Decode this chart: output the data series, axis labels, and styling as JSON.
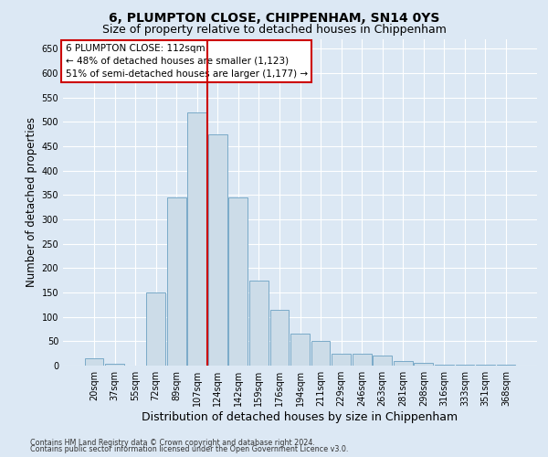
{
  "title1": "6, PLUMPTON CLOSE, CHIPPENHAM, SN14 0YS",
  "title2": "Size of property relative to detached houses in Chippenham",
  "xlabel": "Distribution of detached houses by size in Chippenham",
  "ylabel": "Number of detached properties",
  "annotation_line1": "6 PLUMPTON CLOSE: 112sqm",
  "annotation_line2": "← 48% of detached houses are smaller (1,123)",
  "annotation_line3": "51% of semi-detached houses are larger (1,177) →",
  "footer1": "Contains HM Land Registry data © Crown copyright and database right 2024.",
  "footer2": "Contains public sector information licensed under the Open Government Licence v3.0.",
  "categories": [
    "20sqm",
    "37sqm",
    "55sqm",
    "72sqm",
    "89sqm",
    "107sqm",
    "124sqm",
    "142sqm",
    "159sqm",
    "176sqm",
    "194sqm",
    "211sqm",
    "229sqm",
    "246sqm",
    "263sqm",
    "281sqm",
    "298sqm",
    "316sqm",
    "333sqm",
    "351sqm",
    "368sqm"
  ],
  "values": [
    15,
    3,
    0,
    150,
    345,
    520,
    475,
    345,
    175,
    115,
    65,
    50,
    25,
    25,
    20,
    10,
    5,
    2,
    2,
    2,
    2
  ],
  "bar_color": "#ccdce8",
  "bar_edgecolor": "#7aaac8",
  "vline_color": "#cc0000",
  "vline_position": 5.5,
  "ylim": [
    0,
    670
  ],
  "yticks": [
    0,
    50,
    100,
    150,
    200,
    250,
    300,
    350,
    400,
    450,
    500,
    550,
    600,
    650
  ],
  "bg_color": "#dce8f4",
  "title_fontsize": 10,
  "subtitle_fontsize": 9,
  "axis_label_fontsize": 8.5,
  "tick_fontsize": 7,
  "footer_fontsize": 5.8,
  "annot_fontsize": 7.5
}
